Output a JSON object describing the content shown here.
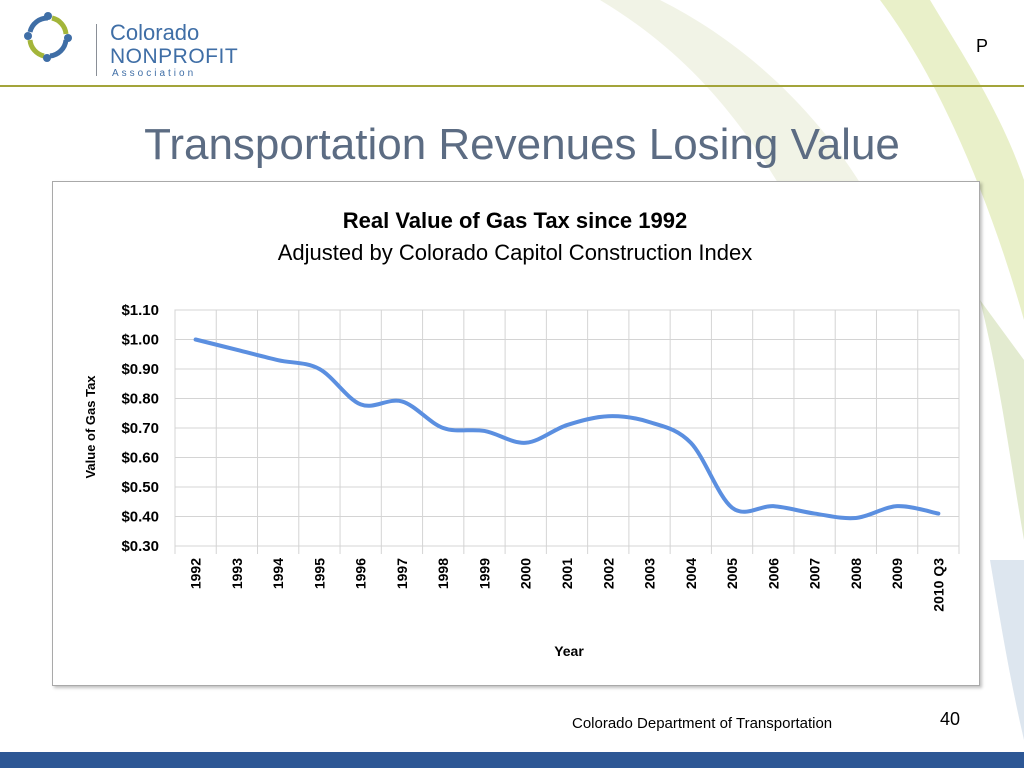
{
  "logo": {
    "line1": "Colorado",
    "line2": "NONPROFIT",
    "line3": "Association"
  },
  "corner_letter": "P",
  "slide_title": "Transportation Revenues Losing Value",
  "footer": {
    "source": "Colorado Department of Transportation",
    "page_number": "40"
  },
  "colors": {
    "title": "#5c6c83",
    "line": "#5b8fe0",
    "rule": "#a3a43a",
    "bottom_bar": "#2d5795"
  },
  "chart_data": {
    "type": "line",
    "title": "Real Value of Gas Tax since 1992",
    "subtitle": "Adjusted by Colorado Capitol Construction Index",
    "xlabel": "Year",
    "ylabel": "Value of Gas Tax",
    "categories": [
      "1992",
      "1993",
      "1994",
      "1995",
      "1996",
      "1997",
      "1998",
      "1999",
      "2000",
      "2001",
      "2002",
      "2003",
      "2004",
      "2005",
      "2006",
      "2007",
      "2008",
      "2009",
      "2010 Q3"
    ],
    "values": [
      1.0,
      0.965,
      0.93,
      0.9,
      0.78,
      0.79,
      0.7,
      0.69,
      0.65,
      0.71,
      0.74,
      0.72,
      0.65,
      0.43,
      0.435,
      0.41,
      0.395,
      0.435,
      0.41
    ],
    "yticks": [
      "$0.30",
      "$0.40",
      "$0.50",
      "$0.60",
      "$0.70",
      "$0.80",
      "$0.90",
      "$1.00",
      "$1.10"
    ],
    "ylim": [
      0.3,
      1.1
    ],
    "grid": true,
    "legend": "none"
  }
}
